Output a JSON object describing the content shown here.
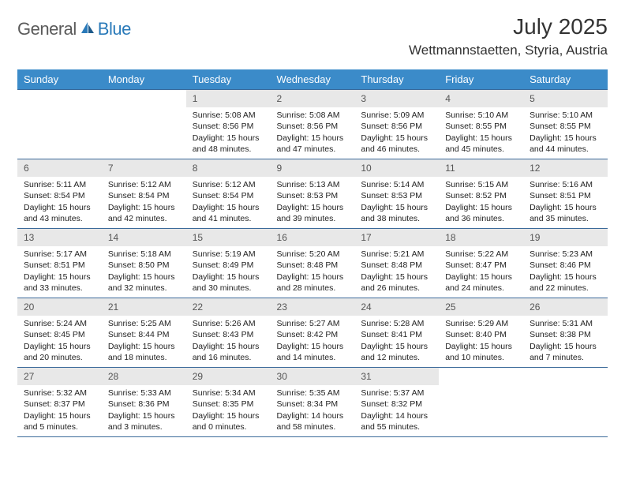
{
  "logo": {
    "text1": "General",
    "text2": "Blue"
  },
  "title": "July 2025",
  "location": "Wettmannstaetten, Styria, Austria",
  "colors": {
    "header_bg": "#3b8bc9",
    "border": "#3b6a9a",
    "daynum_bg": "#e8e8e8",
    "logo_gray": "#5a5a5a",
    "logo_blue": "#2a7ab9"
  },
  "fonts": {
    "title_size": 28,
    "location_size": 17,
    "dayhead_size": 13,
    "cell_size": 10.5
  },
  "type": "table",
  "dayNames": [
    "Sunday",
    "Monday",
    "Tuesday",
    "Wednesday",
    "Thursday",
    "Friday",
    "Saturday"
  ],
  "weeks": [
    [
      null,
      null,
      {
        "n": "1",
        "sunrise": "5:08 AM",
        "sunset": "8:56 PM",
        "daylight": "15 hours and 48 minutes."
      },
      {
        "n": "2",
        "sunrise": "5:08 AM",
        "sunset": "8:56 PM",
        "daylight": "15 hours and 47 minutes."
      },
      {
        "n": "3",
        "sunrise": "5:09 AM",
        "sunset": "8:56 PM",
        "daylight": "15 hours and 46 minutes."
      },
      {
        "n": "4",
        "sunrise": "5:10 AM",
        "sunset": "8:55 PM",
        "daylight": "15 hours and 45 minutes."
      },
      {
        "n": "5",
        "sunrise": "5:10 AM",
        "sunset": "8:55 PM",
        "daylight": "15 hours and 44 minutes."
      }
    ],
    [
      {
        "n": "6",
        "sunrise": "5:11 AM",
        "sunset": "8:54 PM",
        "daylight": "15 hours and 43 minutes."
      },
      {
        "n": "7",
        "sunrise": "5:12 AM",
        "sunset": "8:54 PM",
        "daylight": "15 hours and 42 minutes."
      },
      {
        "n": "8",
        "sunrise": "5:12 AM",
        "sunset": "8:54 PM",
        "daylight": "15 hours and 41 minutes."
      },
      {
        "n": "9",
        "sunrise": "5:13 AM",
        "sunset": "8:53 PM",
        "daylight": "15 hours and 39 minutes."
      },
      {
        "n": "10",
        "sunrise": "5:14 AM",
        "sunset": "8:53 PM",
        "daylight": "15 hours and 38 minutes."
      },
      {
        "n": "11",
        "sunrise": "5:15 AM",
        "sunset": "8:52 PM",
        "daylight": "15 hours and 36 minutes."
      },
      {
        "n": "12",
        "sunrise": "5:16 AM",
        "sunset": "8:51 PM",
        "daylight": "15 hours and 35 minutes."
      }
    ],
    [
      {
        "n": "13",
        "sunrise": "5:17 AM",
        "sunset": "8:51 PM",
        "daylight": "15 hours and 33 minutes."
      },
      {
        "n": "14",
        "sunrise": "5:18 AM",
        "sunset": "8:50 PM",
        "daylight": "15 hours and 32 minutes."
      },
      {
        "n": "15",
        "sunrise": "5:19 AM",
        "sunset": "8:49 PM",
        "daylight": "15 hours and 30 minutes."
      },
      {
        "n": "16",
        "sunrise": "5:20 AM",
        "sunset": "8:48 PM",
        "daylight": "15 hours and 28 minutes."
      },
      {
        "n": "17",
        "sunrise": "5:21 AM",
        "sunset": "8:48 PM",
        "daylight": "15 hours and 26 minutes."
      },
      {
        "n": "18",
        "sunrise": "5:22 AM",
        "sunset": "8:47 PM",
        "daylight": "15 hours and 24 minutes."
      },
      {
        "n": "19",
        "sunrise": "5:23 AM",
        "sunset": "8:46 PM",
        "daylight": "15 hours and 22 minutes."
      }
    ],
    [
      {
        "n": "20",
        "sunrise": "5:24 AM",
        "sunset": "8:45 PM",
        "daylight": "15 hours and 20 minutes."
      },
      {
        "n": "21",
        "sunrise": "5:25 AM",
        "sunset": "8:44 PM",
        "daylight": "15 hours and 18 minutes."
      },
      {
        "n": "22",
        "sunrise": "5:26 AM",
        "sunset": "8:43 PM",
        "daylight": "15 hours and 16 minutes."
      },
      {
        "n": "23",
        "sunrise": "5:27 AM",
        "sunset": "8:42 PM",
        "daylight": "15 hours and 14 minutes."
      },
      {
        "n": "24",
        "sunrise": "5:28 AM",
        "sunset": "8:41 PM",
        "daylight": "15 hours and 12 minutes."
      },
      {
        "n": "25",
        "sunrise": "5:29 AM",
        "sunset": "8:40 PM",
        "daylight": "15 hours and 10 minutes."
      },
      {
        "n": "26",
        "sunrise": "5:31 AM",
        "sunset": "8:38 PM",
        "daylight": "15 hours and 7 minutes."
      }
    ],
    [
      {
        "n": "27",
        "sunrise": "5:32 AM",
        "sunset": "8:37 PM",
        "daylight": "15 hours and 5 minutes."
      },
      {
        "n": "28",
        "sunrise": "5:33 AM",
        "sunset": "8:36 PM",
        "daylight": "15 hours and 3 minutes."
      },
      {
        "n": "29",
        "sunrise": "5:34 AM",
        "sunset": "8:35 PM",
        "daylight": "15 hours and 0 minutes."
      },
      {
        "n": "30",
        "sunrise": "5:35 AM",
        "sunset": "8:34 PM",
        "daylight": "14 hours and 58 minutes."
      },
      {
        "n": "31",
        "sunrise": "5:37 AM",
        "sunset": "8:32 PM",
        "daylight": "14 hours and 55 minutes."
      },
      null,
      null
    ]
  ]
}
